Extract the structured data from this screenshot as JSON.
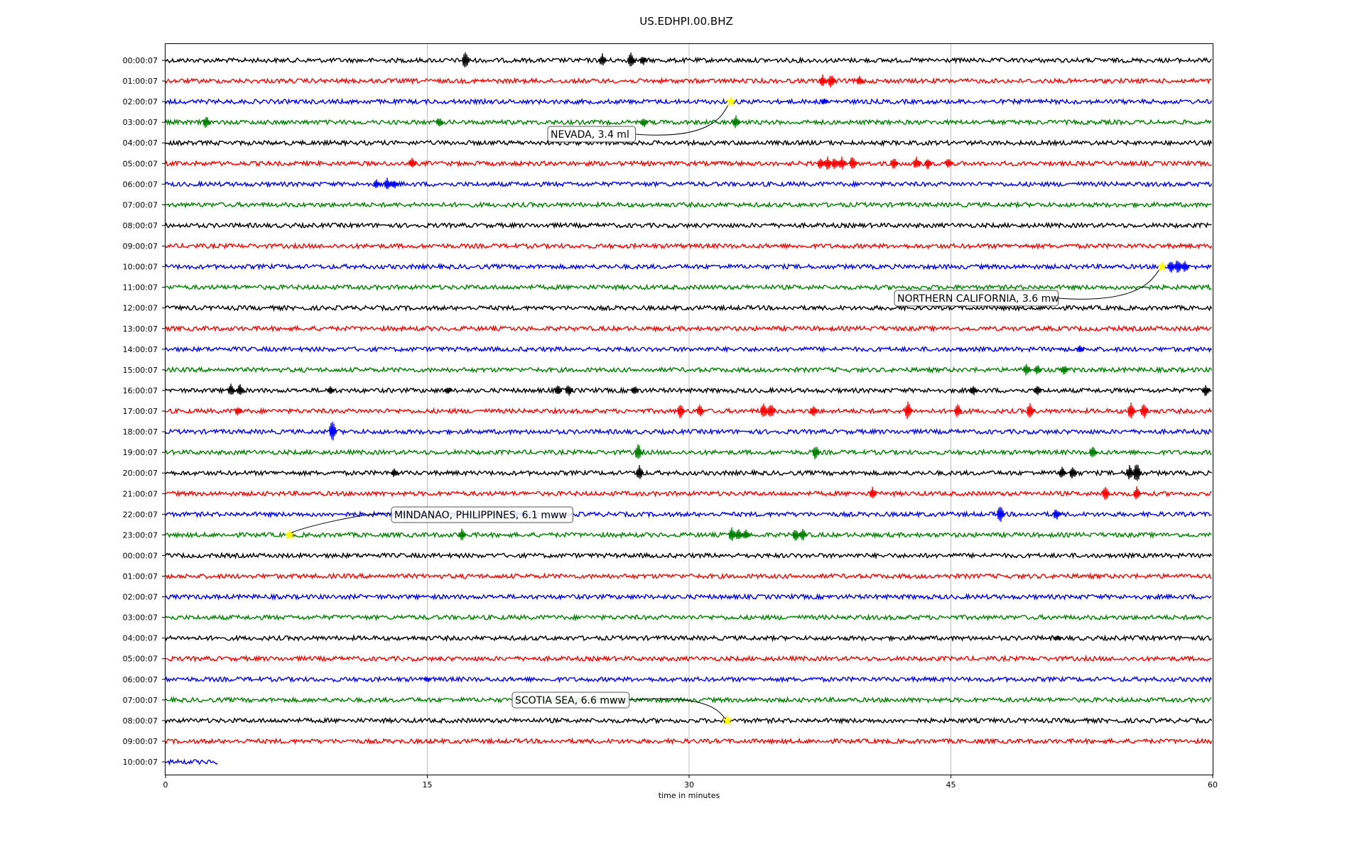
{
  "chart_data": {
    "type": "line",
    "title": "US.EDHPI.00.BHZ",
    "xlabel": "time in minutes",
    "ylabel": "",
    "xlim": [
      0,
      60
    ],
    "x_ticks": [
      "0",
      "15",
      "30",
      "45",
      "60"
    ],
    "x_tick_values": [
      0,
      15,
      30,
      45,
      60
    ],
    "vertical_grid": true,
    "trace_colors": [
      "#000000",
      "#ff0000",
      "#0000ff",
      "#008000"
    ],
    "row_labels": [
      "00:00:07",
      "01:00:07",
      "02:00:07",
      "03:00:07",
      "04:00:07",
      "05:00:07",
      "06:00:07",
      "07:00:07",
      "08:00:07",
      "09:00:07",
      "10:00:07",
      "11:00:07",
      "12:00:07",
      "13:00:07",
      "14:00:07",
      "15:00:07",
      "16:00:07",
      "17:00:07",
      "18:00:07",
      "19:00:07",
      "20:00:07",
      "21:00:07",
      "22:00:07",
      "23:00:07",
      "00:00:07",
      "01:00:07",
      "02:00:07",
      "03:00:07",
      "04:00:07",
      "05:00:07",
      "06:00:07",
      "07:00:07",
      "08:00:07",
      "09:00:07",
      "10:00:07"
    ],
    "last_row_end_minutes": 3,
    "events": [
      {
        "label": "NEVADA, 3.4 ml",
        "row": 2,
        "minute": 32.4
      },
      {
        "label": "NORTHERN CALIFORNIA, 3.6 mw",
        "row": 10,
        "minute": 57.1
      },
      {
        "label": "MINDANAO, PHILIPPINES, 6.1 mww",
        "row": 23,
        "minute": 7.1
      },
      {
        "label": "SCOTIA SEA, 6.6 mww",
        "row": 32,
        "minute": 32.2
      }
    ],
    "marker_color": "#ffff00"
  }
}
